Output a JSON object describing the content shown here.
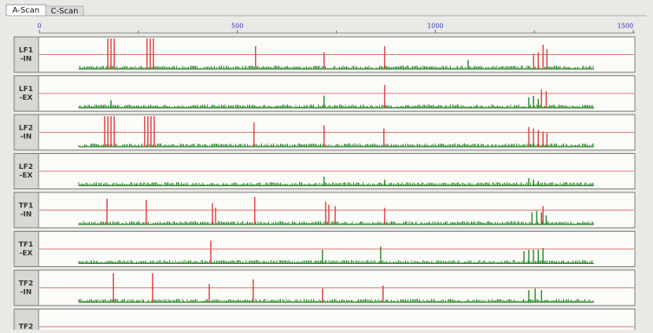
{
  "tabs": [
    "A-Scan",
    "C-Scan"
  ],
  "axis": {
    "xlim": [
      0,
      1500
    ],
    "xticks": [
      0,
      500,
      1000,
      1500
    ],
    "minor_xticks": [
      250,
      750,
      1250
    ]
  },
  "channels": [
    {
      "label": [
        "LF1",
        "-IN"
      ],
      "peaks": [
        {
          "x": 173,
          "amp": 100,
          "color": "#e04040"
        },
        {
          "x": 181,
          "amp": 100,
          "color": "#e04040"
        },
        {
          "x": 189,
          "amp": 100,
          "color": "#e04040"
        },
        {
          "x": 272,
          "amp": 100,
          "color": "#e04040"
        },
        {
          "x": 280,
          "amp": 100,
          "color": "#e04040"
        },
        {
          "x": 288,
          "amp": 100,
          "color": "#e04040"
        },
        {
          "x": 546,
          "amp": 75,
          "color": "#e04040"
        },
        {
          "x": 719,
          "amp": 55,
          "color": "#e04040"
        },
        {
          "x": 872,
          "amp": 75,
          "color": "#e04040"
        },
        {
          "x": 1083,
          "amp": 30,
          "color": "#2a8a2a"
        },
        {
          "x": 1248,
          "amp": 50,
          "color": "#e04040"
        },
        {
          "x": 1260,
          "amp": 55,
          "color": "#e04040"
        },
        {
          "x": 1272,
          "amp": 80,
          "color": "#e04040"
        },
        {
          "x": 1282,
          "amp": 65,
          "color": "#e04040"
        }
      ]
    },
    {
      "label": [
        "LF1",
        "-EX"
      ],
      "peaks": [
        {
          "x": 181,
          "amp": 25,
          "color": "#2a8a2a"
        },
        {
          "x": 719,
          "amp": 40,
          "color": "#2a8a2a"
        },
        {
          "x": 872,
          "amp": 75,
          "color": "#e04040"
        },
        {
          "x": 1236,
          "amp": 35,
          "color": "#2a8a2a"
        },
        {
          "x": 1248,
          "amp": 40,
          "color": "#2a8a2a"
        },
        {
          "x": 1260,
          "amp": 30,
          "color": "#2a8a2a"
        },
        {
          "x": 1268,
          "amp": 60,
          "color": "#e04040"
        },
        {
          "x": 1280,
          "amp": 55,
          "color": "#e04040"
        }
      ]
    },
    {
      "label": [
        "LF2",
        "-IN"
      ],
      "peaks": [
        {
          "x": 165,
          "amp": 100,
          "color": "#e04040"
        },
        {
          "x": 173,
          "amp": 100,
          "color": "#e04040"
        },
        {
          "x": 181,
          "amp": 100,
          "color": "#e04040"
        },
        {
          "x": 189,
          "amp": 100,
          "color": "#e04040"
        },
        {
          "x": 266,
          "amp": 100,
          "color": "#e04040"
        },
        {
          "x": 274,
          "amp": 100,
          "color": "#e04040"
        },
        {
          "x": 282,
          "amp": 100,
          "color": "#e04040"
        },
        {
          "x": 290,
          "amp": 100,
          "color": "#e04040"
        },
        {
          "x": 542,
          "amp": 80,
          "color": "#e04040"
        },
        {
          "x": 719,
          "amp": 70,
          "color": "#e04040"
        },
        {
          "x": 870,
          "amp": 60,
          "color": "#e04040"
        },
        {
          "x": 1236,
          "amp": 65,
          "color": "#e04040"
        },
        {
          "x": 1248,
          "amp": 60,
          "color": "#e04040"
        },
        {
          "x": 1260,
          "amp": 55,
          "color": "#e04040"
        },
        {
          "x": 1272,
          "amp": 50,
          "color": "#e04040"
        },
        {
          "x": 1282,
          "amp": 45,
          "color": "#e04040"
        }
      ]
    },
    {
      "label": [
        "LF2",
        "-EX"
      ],
      "peaks": [
        {
          "x": 719,
          "amp": 30,
          "color": "#2a8a2a"
        },
        {
          "x": 872,
          "amp": 20,
          "color": "#2a8a2a"
        },
        {
          "x": 1236,
          "amp": 25,
          "color": "#2a8a2a"
        },
        {
          "x": 1248,
          "amp": 20,
          "color": "#2a8a2a"
        },
        {
          "x": 1260,
          "amp": 15,
          "color": "#2a8a2a"
        }
      ]
    },
    {
      "label": [
        "TF1",
        "-IN"
      ],
      "peaks": [
        {
          "x": 171,
          "amp": 85,
          "color": "#e04040"
        },
        {
          "x": 270,
          "amp": 80,
          "color": "#e04040"
        },
        {
          "x": 437,
          "amp": 70,
          "color": "#e04040"
        },
        {
          "x": 445,
          "amp": 55,
          "color": "#e04040"
        },
        {
          "x": 544,
          "amp": 90,
          "color": "#e04040"
        },
        {
          "x": 723,
          "amp": 75,
          "color": "#e04040"
        },
        {
          "x": 731,
          "amp": 65,
          "color": "#e04040"
        },
        {
          "x": 747,
          "amp": 60,
          "color": "#e04040"
        },
        {
          "x": 872,
          "amp": 55,
          "color": "#e04040"
        },
        {
          "x": 1244,
          "amp": 40,
          "color": "#2a8a2a"
        },
        {
          "x": 1256,
          "amp": 45,
          "color": "#2a8a2a"
        },
        {
          "x": 1268,
          "amp": 40,
          "color": "#2a8a2a"
        },
        {
          "x": 1272,
          "amp": 60,
          "color": "#e04040"
        },
        {
          "x": 1280,
          "amp": 30,
          "color": "#2a8a2a"
        }
      ]
    },
    {
      "label": [
        "TF1",
        "-EX"
      ],
      "peaks": [
        {
          "x": 433,
          "amp": 75,
          "color": "#e04040"
        },
        {
          "x": 715,
          "amp": 45,
          "color": "#2a8a2a"
        },
        {
          "x": 862,
          "amp": 55,
          "color": "#2a8a2a"
        },
        {
          "x": 1224,
          "amp": 40,
          "color": "#2a8a2a"
        },
        {
          "x": 1236,
          "amp": 45,
          "color": "#2a8a2a"
        },
        {
          "x": 1248,
          "amp": 45,
          "color": "#2a8a2a"
        },
        {
          "x": 1260,
          "amp": 45,
          "color": "#2a8a2a"
        },
        {
          "x": 1272,
          "amp": 50,
          "color": "#2a8a2a"
        }
      ]
    },
    {
      "label": [
        "TF2",
        "-IN"
      ],
      "peaks": [
        {
          "x": 187,
          "amp": 95,
          "color": "#e04040"
        },
        {
          "x": 286,
          "amp": 95,
          "color": "#e04040"
        },
        {
          "x": 429,
          "amp": 60,
          "color": "#e04040"
        },
        {
          "x": 540,
          "amp": 75,
          "color": "#e04040"
        },
        {
          "x": 715,
          "amp": 45,
          "color": "#e04040"
        },
        {
          "x": 868,
          "amp": 55,
          "color": "#e04040"
        },
        {
          "x": 1236,
          "amp": 40,
          "color": "#2a8a2a"
        },
        {
          "x": 1252,
          "amp": 45,
          "color": "#2a8a2a"
        },
        {
          "x": 1268,
          "amp": 40,
          "color": "#2a8a2a"
        }
      ]
    },
    {
      "label": [
        "TF2"
      ],
      "peaks": []
    }
  ]
}
